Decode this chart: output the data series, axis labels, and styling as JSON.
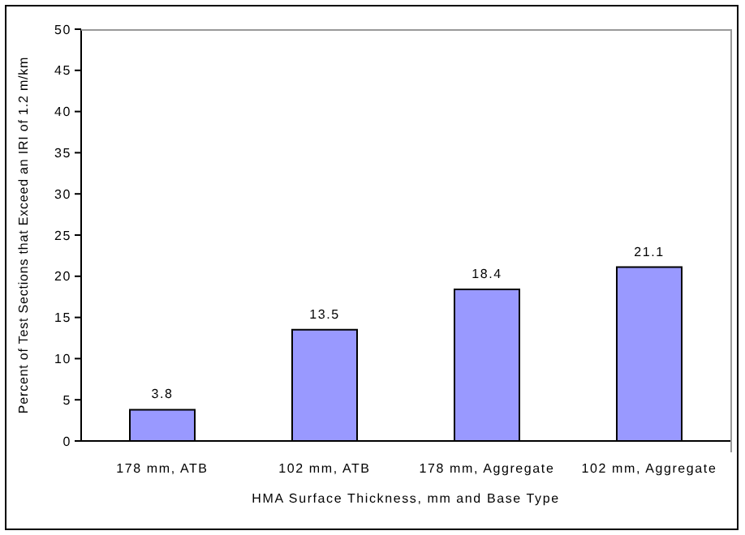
{
  "chart_data": {
    "type": "bar",
    "xlabel": "HMA Surface Thickness, mm and Base Type",
    "ylabel": "Percent of Test Sections that Exceed an IRI of 1.2 m/km",
    "categories": [
      "178 mm, ATB",
      "102 mm, ATB",
      "178 mm, Aggregate",
      "102 mm, Aggregate"
    ],
    "values": [
      3.8,
      13.5,
      18.4,
      21.1
    ],
    "color": "#9999ff",
    "data_labels": true,
    "grid": false,
    "legend": false,
    "ylim": [
      0,
      50
    ],
    "yticks": [
      0,
      5,
      10,
      15,
      20,
      25,
      30,
      35,
      40,
      45,
      50
    ]
  }
}
